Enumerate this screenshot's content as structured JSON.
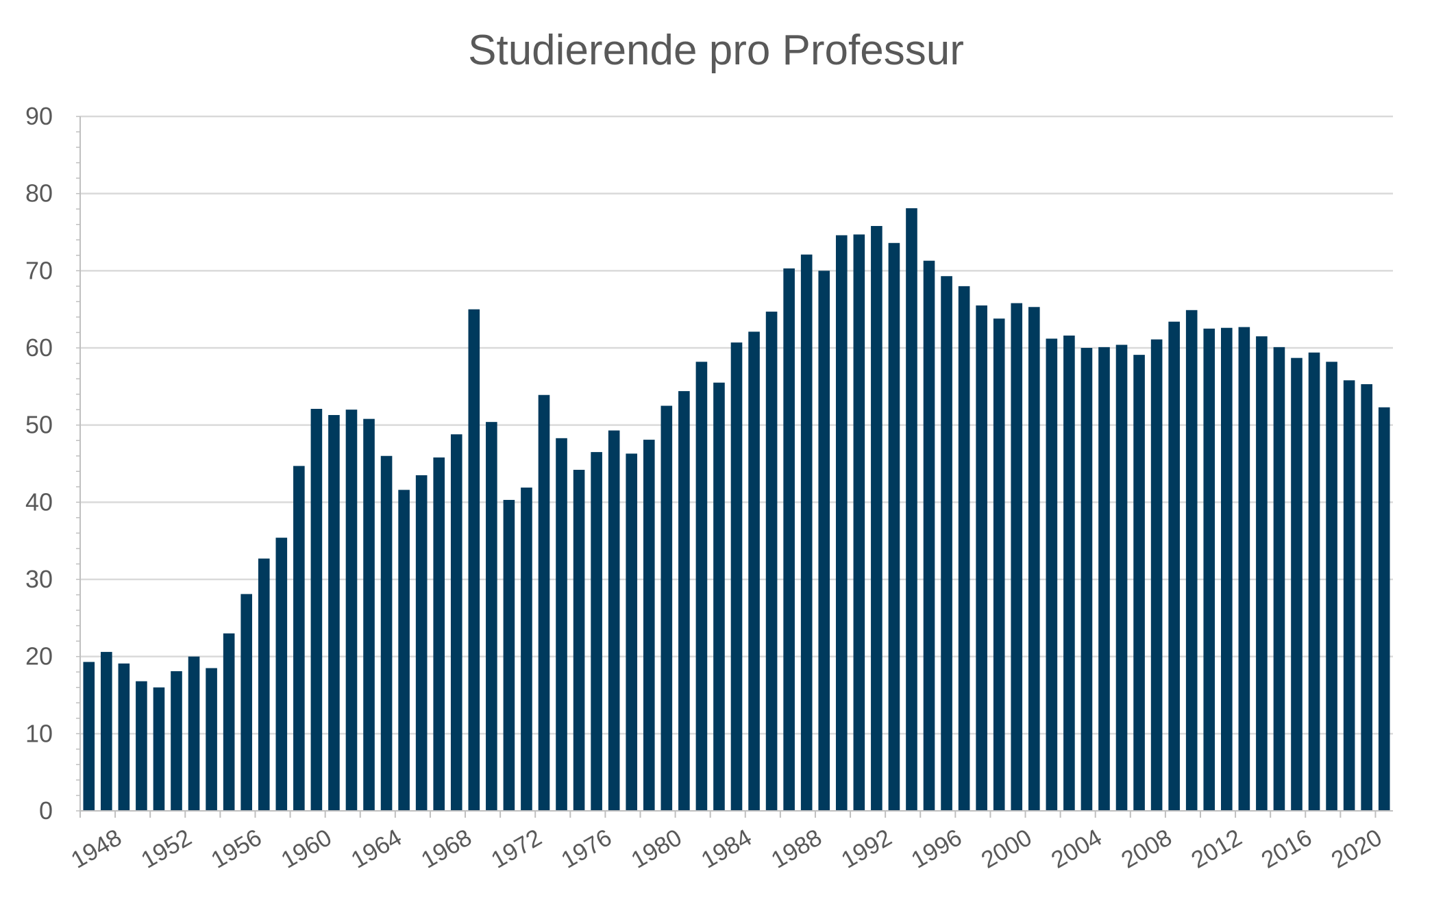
{
  "chart_data": {
    "type": "bar",
    "title": "Studierende pro Professur",
    "xlabel": "",
    "ylabel": "",
    "ylim": [
      0,
      90
    ],
    "yticks": [
      0,
      10,
      20,
      30,
      40,
      50,
      60,
      70,
      80,
      90
    ],
    "xtick_labels": [
      "1948",
      "1952",
      "1956",
      "1960",
      "1964",
      "1968",
      "1972",
      "1976",
      "1980",
      "1984",
      "1988",
      "1992",
      "1996",
      "2000",
      "2004",
      "2008",
      "2012",
      "2016",
      "2020"
    ],
    "grid": true,
    "bar_color": "#003A5D",
    "categories": [
      1948,
      1949,
      1950,
      1951,
      1952,
      1953,
      1954,
      1955,
      1956,
      1957,
      1958,
      1959,
      1960,
      1961,
      1962,
      1963,
      1964,
      1965,
      1966,
      1967,
      1968,
      1969,
      1970,
      1971,
      1972,
      1973,
      1974,
      1975,
      1976,
      1977,
      1978,
      1979,
      1980,
      1981,
      1982,
      1983,
      1984,
      1985,
      1986,
      1987,
      1988,
      1989,
      1990,
      1991,
      1992,
      1993,
      1994,
      1995,
      1996,
      1997,
      1998,
      1999,
      2000,
      2001,
      2002,
      2003,
      2004,
      2005,
      2006,
      2007,
      2008,
      2009,
      2010,
      2011,
      2012,
      2013,
      2014,
      2015,
      2016,
      2017,
      2018,
      2019,
      2020,
      2021,
      2022
    ],
    "values": [
      19.3,
      20.6,
      19.1,
      16.8,
      16.0,
      18.1,
      20.0,
      18.5,
      23.0,
      28.1,
      32.7,
      35.4,
      44.7,
      52.1,
      51.3,
      52.0,
      50.8,
      46.0,
      41.6,
      43.5,
      45.8,
      48.8,
      65.0,
      50.4,
      40.3,
      41.9,
      53.9,
      48.3,
      44.2,
      46.5,
      49.3,
      46.3,
      48.1,
      52.5,
      54.4,
      58.2,
      55.5,
      60.7,
      62.1,
      64.7,
      70.3,
      72.1,
      70.0,
      74.6,
      74.7,
      75.8,
      73.6,
      78.1,
      71.3,
      69.3,
      68.0,
      65.5,
      63.8,
      65.8,
      65.3,
      61.2,
      61.6,
      60.0,
      60.1,
      60.4,
      59.1,
      61.1,
      63.4,
      64.9,
      62.5,
      62.6,
      62.7,
      61.5,
      60.1,
      58.7,
      59.4,
      58.2,
      55.8,
      55.3,
      52.3
    ]
  }
}
